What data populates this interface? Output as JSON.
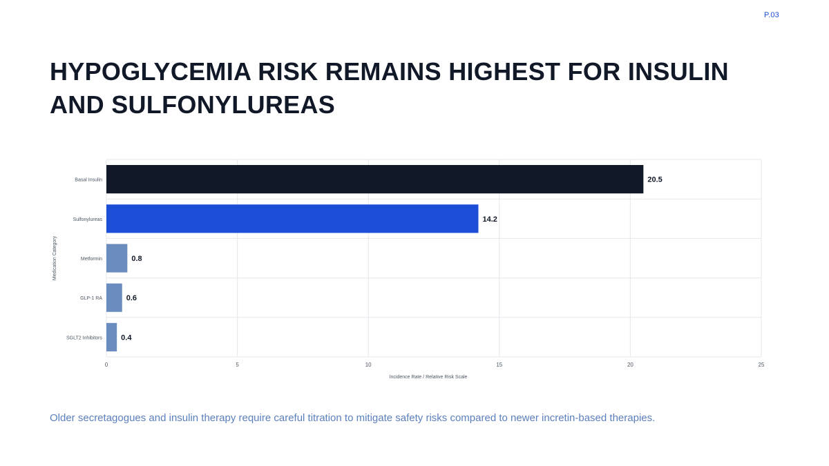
{
  "page_number": "P.03",
  "title": "HYPOGLYCEMIA RISK REMAINS HIGHEST FOR INSULIN AND SULFONYLUREAS",
  "caption": "Older secretagogues and insulin therapy require careful titration to mitigate safety risks compared to newer incretin-based therapies.",
  "colors": {
    "primary_dark": "#111827",
    "accent_blue": "#1d4ed8",
    "muted_blue": "#6b8cbf",
    "grid": "#e5e7eb",
    "caption": "#5b7fbd"
  },
  "chart_data": {
    "type": "bar",
    "orientation": "horizontal",
    "categories": [
      "Basal Insulin",
      "Sulfonylureas",
      "Metformin",
      "GLP-1 RA",
      "SGLT2 Inhibitors"
    ],
    "values": [
      20.5,
      14.2,
      0.8,
      0.6,
      0.4
    ],
    "value_labels": [
      "20.5",
      "14.2",
      "0.8",
      "0.6",
      "0.4"
    ],
    "bar_colors": [
      "#111827",
      "#1d4ed8",
      "#6b8cbf",
      "#6b8cbf",
      "#6b8cbf"
    ],
    "xlabel": "Incidence Rate / Relative Risk Scale",
    "ylabel": "Medication Category",
    "xlim": [
      0,
      25
    ],
    "xticks": [
      0,
      5,
      10,
      15,
      20,
      25
    ],
    "grid": true
  }
}
